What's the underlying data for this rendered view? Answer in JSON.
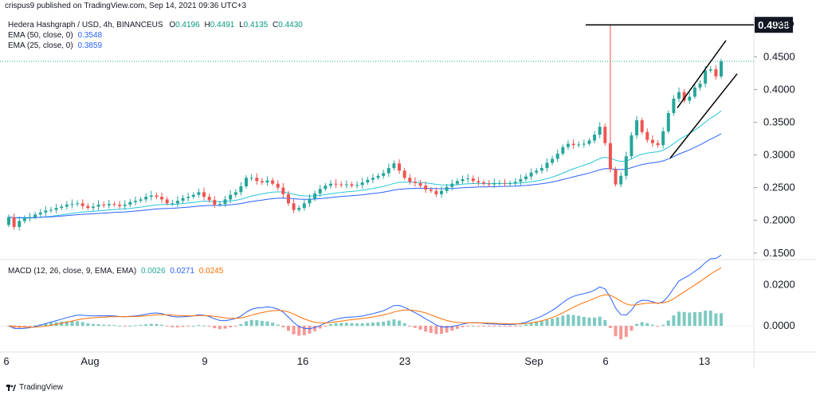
{
  "header": {
    "published": "crispus9 published on TradingView.com, Sep 14, 2021 09:36 UTC+3",
    "symbol": "Hedera Hashgraph / USD, 4h, BINANCEUS",
    "ohlc": {
      "o_label": "O",
      "o": "0.4196",
      "h_label": "H",
      "h": "0.4491",
      "l_label": "L",
      "l": "0.4135",
      "c_label": "C",
      "c": "0.4430"
    },
    "ema50": {
      "label": "EMA (50, close, 0)",
      "value": "0.3548"
    },
    "ema25": {
      "label": "EMA (25, close, 0)",
      "value": "0.3859"
    }
  },
  "macd_legend": {
    "label": "MACD (12, 26, close, 9, EMA, EMA)",
    "hist": "0.0026",
    "macd": "0.0271",
    "signal": "0.0245"
  },
  "brand": {
    "name": "TradingView"
  },
  "colors": {
    "up": "#26a69a",
    "down": "#ef5350",
    "ema_blue": "#2962ff",
    "ema_teal": "#26c6da",
    "signal": "#ff6d00",
    "hist_up": "#26a69a",
    "hist_down": "#ef5350"
  },
  "chart_data": {
    "type": "candlestick",
    "currency_label": "USD",
    "price_axis": {
      "ticks": [
        "0.4500",
        "0.4000",
        "0.3500",
        "0.3000",
        "0.2500",
        "0.2000",
        "0.1500"
      ],
      "ylim": [
        0.14,
        0.51
      ]
    },
    "macd_axis": {
      "ticks": [
        "0.0200",
        "0.0000"
      ],
      "ylim": [
        -0.012,
        0.03
      ]
    },
    "x_ticks": [
      "6",
      "Aug",
      "9",
      "16",
      "23",
      "Sep",
      "6",
      "13"
    ],
    "highlight_level": {
      "label": "0.4988",
      "value": 0.4988
    },
    "last_price": 0.443,
    "closes": [
      0.205,
      0.19,
      0.199,
      0.203,
      0.205,
      0.209,
      0.212,
      0.215,
      0.216,
      0.219,
      0.221,
      0.224,
      0.225,
      0.226,
      0.222,
      0.219,
      0.221,
      0.224,
      0.223,
      0.225,
      0.224,
      0.222,
      0.224,
      0.228,
      0.23,
      0.232,
      0.236,
      0.238,
      0.236,
      0.232,
      0.226,
      0.226,
      0.23,
      0.234,
      0.236,
      0.239,
      0.243,
      0.236,
      0.231,
      0.224,
      0.225,
      0.232,
      0.239,
      0.243,
      0.252,
      0.265,
      0.265,
      0.26,
      0.258,
      0.261,
      0.256,
      0.25,
      0.24,
      0.226,
      0.216,
      0.219,
      0.226,
      0.233,
      0.241,
      0.248,
      0.253,
      0.256,
      0.255,
      0.254,
      0.255,
      0.253,
      0.254,
      0.258,
      0.262,
      0.265,
      0.268,
      0.272,
      0.28,
      0.287,
      0.276,
      0.265,
      0.259,
      0.257,
      0.253,
      0.247,
      0.245,
      0.24,
      0.245,
      0.251,
      0.256,
      0.26,
      0.263,
      0.264,
      0.26,
      0.258,
      0.256,
      0.255,
      0.257,
      0.257,
      0.256,
      0.257,
      0.259,
      0.263,
      0.267,
      0.273,
      0.276,
      0.28,
      0.288,
      0.294,
      0.302,
      0.312,
      0.317,
      0.315,
      0.316,
      0.317,
      0.322,
      0.331,
      0.343,
      0.318,
      0.278,
      0.255,
      0.268,
      0.298,
      0.33,
      0.353,
      0.335,
      0.323,
      0.318,
      0.315,
      0.336,
      0.364,
      0.386,
      0.396,
      0.383,
      0.389,
      0.403,
      0.409,
      0.429,
      0.431,
      0.42,
      0.443
    ]
  }
}
